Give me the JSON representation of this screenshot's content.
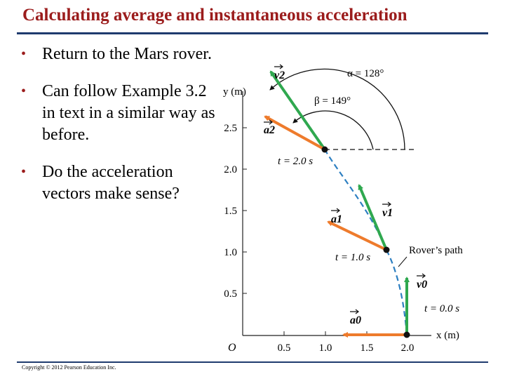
{
  "title": "Calculating average and instantaneous acceleration",
  "bullets": [
    "Return to the Mars rover.",
    "Can follow Example 3.2 in text in a similar way as before.",
    "Do the acceleration vectors make sense?"
  ],
  "figure": {
    "y_axis_label": "y (m)",
    "x_axis_label": "x (m)",
    "origin_label": "O",
    "x_ticks": [
      "0.5",
      "1.0",
      "1.5",
      "2.0"
    ],
    "y_ticks": [
      "0.5",
      "1.0",
      "1.5",
      "2.0",
      "2.5"
    ],
    "alpha_label": "α = 128°",
    "beta_label": "β = 149°",
    "v2_label": "v2",
    "a2_label": "a2",
    "v1_label": "v1",
    "a1_label": "a1",
    "v0_label": "v0",
    "a0_label": "a0",
    "t2_label": "t = 2.0 s",
    "t1_label": "t = 1.0 s",
    "t0_label": "t = 0.0 s",
    "path_label": "Rover’s path",
    "colors": {
      "velocity": "#2fa84f",
      "acceleration": "#ee7b2c",
      "path": "#2d7fc1"
    }
  },
  "copyright": "Copyright © 2012 Pearson Education Inc."
}
